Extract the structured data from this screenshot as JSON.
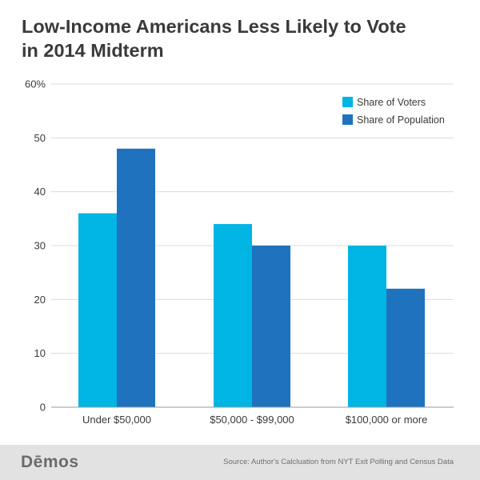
{
  "header": {
    "title_line1": "Low-Income Americans Less Likely to Vote",
    "title_line2": "in 2014 Midterm"
  },
  "chart_data": {
    "type": "bar",
    "title": "Low-Income Americans Less Likely to Vote in 2014 Midterm",
    "categories": [
      "Under $50,000",
      "$50,000 - $99,000",
      "$100,000 or more"
    ],
    "series": [
      {
        "name": "Share of Voters",
        "values": [
          36,
          34,
          30
        ],
        "color": "#00b4e4"
      },
      {
        "name": "Share of Population",
        "values": [
          48,
          30,
          22
        ],
        "color": "#1f73be"
      }
    ],
    "ylim": [
      0,
      60
    ],
    "yticks": [
      0,
      10,
      20,
      30,
      40,
      50,
      60
    ],
    "ytick_labels": [
      "0",
      "10",
      "20",
      "30",
      "40",
      "50",
      "60%"
    ],
    "xlabel": "",
    "ylabel": "",
    "grid": true,
    "legend_position": "top-right"
  },
  "footer": {
    "brand": "Dēmos",
    "source": "Source: Author's Calcluation from NYT Exit Polling and Census Data"
  }
}
